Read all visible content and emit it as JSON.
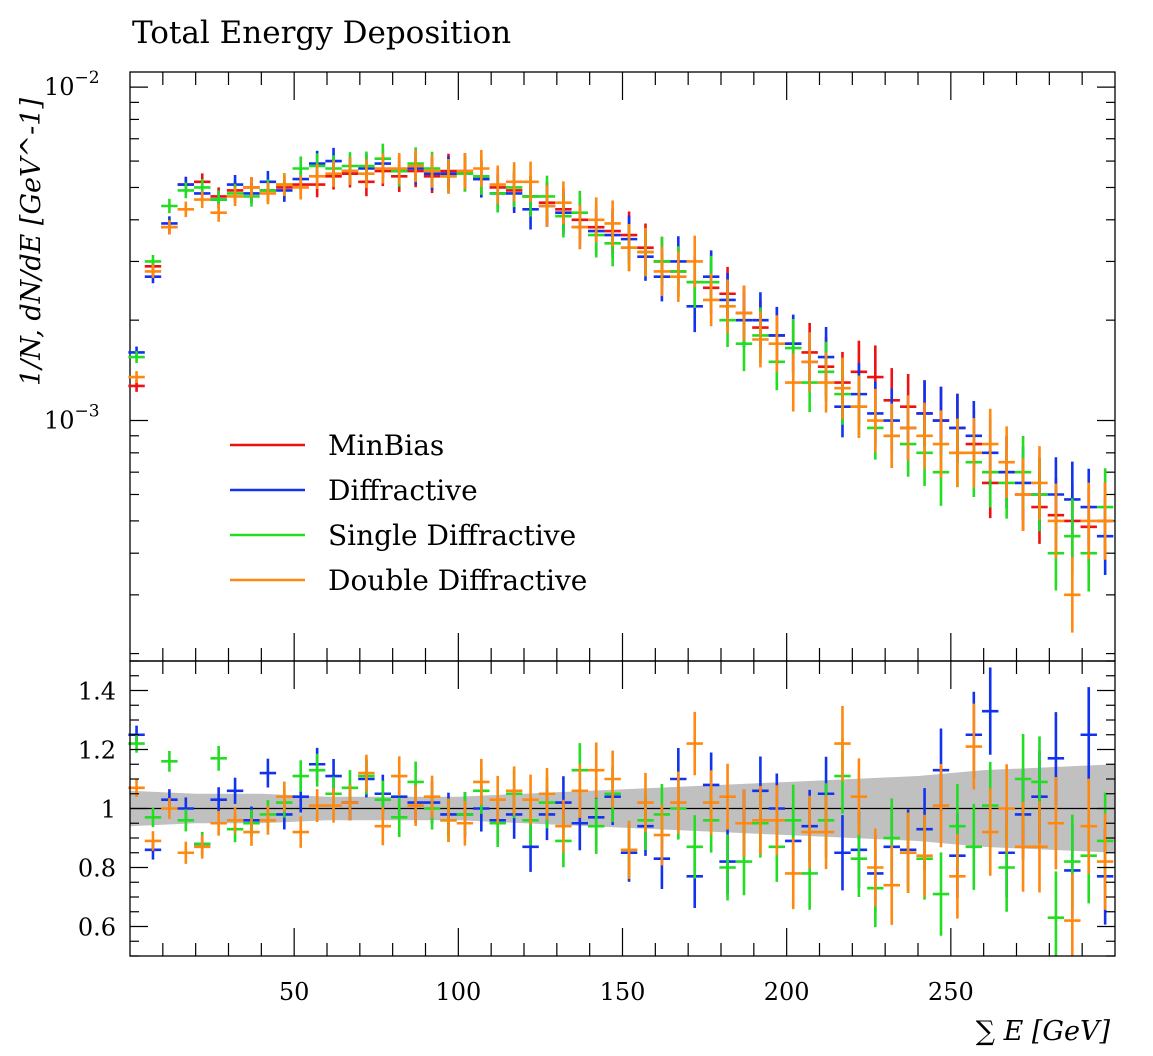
{
  "chart_data": [
    {
      "type": "scatter",
      "panel": "main",
      "title": "Total Energy Deposition",
      "ylabel": "1/N, dN/dE [GeV^-1]",
      "xlabel": "∑ E [GeV]",
      "yscale": "log",
      "xlim": [
        0,
        300
      ],
      "ylim": [
        0.00019,
        0.0111
      ],
      "ytick_labels": [
        {
          "base": "10",
          "exp": "−3",
          "value": 0.001
        },
        {
          "base": "10",
          "exp": "−2",
          "value": 0.01
        }
      ],
      "legend_position": "center-left",
      "series": [
        {
          "name": "MinBias",
          "color": "#ee1111",
          "x": [
            2,
            7,
            12,
            17,
            22,
            27,
            32,
            37,
            42,
            47,
            52,
            57,
            62,
            67,
            72,
            77,
            82,
            87,
            92,
            97,
            102,
            107,
            112,
            117,
            122,
            127,
            132,
            137,
            142,
            147,
            152,
            157,
            162,
            167,
            172,
            177,
            182,
            187,
            192,
            197,
            202,
            207,
            212,
            217,
            222,
            227,
            232,
            237,
            242,
            247,
            252,
            257,
            262,
            267,
            272,
            277,
            282,
            287,
            292,
            297
          ],
          "y": [
            0.00127,
            0.0029,
            0.0038,
            0.0051,
            0.0052,
            0.0047,
            0.0049,
            0.005,
            0.0049,
            0.005,
            0.0051,
            0.0051,
            0.0054,
            0.0055,
            0.0052,
            0.0056,
            0.0054,
            0.0056,
            0.0054,
            0.0056,
            0.0056,
            0.0053,
            0.005,
            0.0049,
            0.0047,
            0.0045,
            0.0043,
            0.004,
            0.0038,
            0.0037,
            0.0036,
            0.0033,
            0.003,
            0.0028,
            0.0026,
            0.0025,
            0.0024,
            0.0021,
            0.0019,
            0.0018,
            0.0017,
            0.0016,
            0.00145,
            0.0013,
            0.0014,
            0.00135,
            0.00115,
            0.0011,
            0.00105,
            0.001,
            0.00095,
            0.00085,
            0.00065,
            0.0007,
            0.0006,
            0.00055,
            0.00052,
            0.0005,
            0.00048,
            0.0005
          ]
        },
        {
          "name": "Diffractive",
          "color": "#1133ee",
          "x": [
            2,
            7,
            12,
            17,
            22,
            27,
            32,
            37,
            42,
            47,
            52,
            57,
            62,
            67,
            72,
            77,
            82,
            87,
            92,
            97,
            102,
            107,
            112,
            117,
            122,
            127,
            132,
            137,
            142,
            147,
            152,
            157,
            162,
            167,
            172,
            177,
            182,
            187,
            192,
            197,
            202,
            207,
            212,
            217,
            222,
            227,
            232,
            237,
            242,
            247,
            252,
            257,
            262,
            267,
            272,
            277,
            282,
            287,
            292,
            297
          ],
          "y": [
            0.0016,
            0.0027,
            0.0039,
            0.0051,
            0.0048,
            0.0046,
            0.0051,
            0.0048,
            0.0052,
            0.0049,
            0.0053,
            0.0059,
            0.006,
            0.0056,
            0.0057,
            0.0059,
            0.0056,
            0.0057,
            0.0055,
            0.0055,
            0.0055,
            0.0053,
            0.0048,
            0.0048,
            0.0043,
            0.0044,
            0.0042,
            0.0038,
            0.0037,
            0.0036,
            0.0035,
            0.0031,
            0.0027,
            0.003,
            0.0022,
            0.0027,
            0.0023,
            0.002,
            0.002,
            0.0018,
            0.0017,
            0.0015,
            0.00155,
            0.0011,
            0.0012,
            0.00105,
            0.001,
            0.00095,
            0.00105,
            0.001,
            0.00095,
            0.0009,
            0.0008,
            0.0007,
            0.00065,
            0.0006,
            0.0006,
            0.00058,
            0.00055,
            0.00045
          ]
        },
        {
          "name": "Single Diffractive",
          "color": "#22dd22",
          "x": [
            2,
            7,
            12,
            17,
            22,
            27,
            32,
            37,
            42,
            47,
            52,
            57,
            62,
            67,
            72,
            77,
            82,
            87,
            92,
            97,
            102,
            107,
            112,
            117,
            122,
            127,
            132,
            137,
            142,
            147,
            152,
            157,
            162,
            167,
            172,
            177,
            182,
            187,
            192,
            197,
            202,
            207,
            212,
            217,
            222,
            227,
            232,
            237,
            242,
            247,
            252,
            257,
            262,
            267,
            272,
            277,
            282,
            287,
            292,
            297
          ],
          "y": [
            0.00155,
            0.003,
            0.0044,
            0.0049,
            0.005,
            0.0046,
            0.0048,
            0.0047,
            0.0049,
            0.0051,
            0.0057,
            0.0058,
            0.0057,
            0.0058,
            0.0058,
            0.0061,
            0.0056,
            0.0059,
            0.0057,
            0.0054,
            0.0055,
            0.0054,
            0.0048,
            0.005,
            0.0047,
            0.0047,
            0.0041,
            0.0042,
            0.0036,
            0.0034,
            0.0033,
            0.0032,
            0.003,
            0.0028,
            0.0026,
            0.0026,
            0.002,
            0.0017,
            0.0018,
            0.0015,
            0.00165,
            0.0013,
            0.0014,
            0.0012,
            0.0011,
            0.00095,
            0.0009,
            0.00085,
            0.0008,
            0.0007,
            0.0008,
            0.00075,
            0.0007,
            0.00065,
            0.0007,
            0.0006,
            0.0004,
            0.00045,
            0.0004,
            0.00055
          ]
        },
        {
          "name": "Double Diffractive",
          "color": "#ff8811",
          "x": [
            2,
            7,
            12,
            17,
            22,
            27,
            32,
            37,
            42,
            47,
            52,
            57,
            62,
            67,
            72,
            77,
            82,
            87,
            92,
            97,
            102,
            107,
            112,
            117,
            122,
            127,
            132,
            137,
            142,
            147,
            152,
            157,
            162,
            167,
            172,
            177,
            182,
            187,
            192,
            197,
            202,
            207,
            212,
            217,
            222,
            227,
            232,
            237,
            242,
            247,
            252,
            257,
            262,
            267,
            272,
            277,
            282,
            287,
            292,
            297
          ],
          "y": [
            0.00135,
            0.0028,
            0.0038,
            0.0043,
            0.0046,
            0.0042,
            0.0047,
            0.005,
            0.0048,
            0.0051,
            0.005,
            0.0054,
            0.0055,
            0.0056,
            0.0055,
            0.0057,
            0.0057,
            0.0058,
            0.0056,
            0.0054,
            0.0056,
            0.0057,
            0.0051,
            0.0052,
            0.0052,
            0.0044,
            0.0045,
            0.0038,
            0.004,
            0.0039,
            0.0033,
            0.0032,
            0.0028,
            0.0027,
            0.003,
            0.0023,
            0.0022,
            0.0021,
            0.00175,
            0.0017,
            0.0013,
            0.0015,
            0.0013,
            0.00125,
            0.0011,
            0.001,
            0.0009,
            0.00095,
            0.0009,
            0.00085,
            0.0008,
            0.0008,
            0.00085,
            0.00075,
            0.0006,
            0.00065,
            0.0005,
            0.0003,
            0.0005,
            0.0005
          ]
        }
      ]
    },
    {
      "type": "scatter",
      "panel": "ratio",
      "xlabel": "∑ E [GeV]",
      "xlim": [
        0,
        300
      ],
      "ylim": [
        0.5,
        1.5
      ],
      "x_tick_labels": [
        "50",
        "100",
        "150",
        "200",
        "250"
      ],
      "x_tick_values": [
        50,
        100,
        150,
        200,
        250
      ],
      "y_tick_labels": [
        "0.6",
        "0.8",
        "1",
        "1.2",
        "1.4"
      ],
      "y_tick_values": [
        0.6,
        0.8,
        1.0,
        1.2,
        1.4
      ],
      "reference_line": 1.0,
      "band_color": "#c0c0c0",
      "band": {
        "x": [
          0,
          20,
          40,
          60,
          80,
          100,
          120,
          140,
          160,
          180,
          200,
          220,
          240,
          260,
          280,
          300
        ],
        "lo": [
          0.94,
          0.95,
          0.95,
          0.96,
          0.96,
          0.96,
          0.95,
          0.94,
          0.93,
          0.92,
          0.91,
          0.9,
          0.89,
          0.87,
          0.86,
          0.85
        ],
        "hi": [
          1.06,
          1.05,
          1.05,
          1.04,
          1.04,
          1.04,
          1.05,
          1.06,
          1.07,
          1.08,
          1.09,
          1.1,
          1.11,
          1.13,
          1.14,
          1.15
        ]
      },
      "series": [
        {
          "name": "Diffractive",
          "color": "#1133ee",
          "x": [
            2,
            7,
            12,
            17,
            22,
            27,
            32,
            37,
            42,
            47,
            52,
            57,
            62,
            67,
            72,
            77,
            82,
            87,
            92,
            97,
            102,
            107,
            112,
            117,
            122,
            127,
            132,
            137,
            142,
            147,
            152,
            157,
            162,
            167,
            172,
            177,
            182,
            187,
            192,
            197,
            202,
            207,
            212,
            217,
            222,
            227,
            232,
            237,
            242,
            247,
            252,
            257,
            262,
            267,
            272,
            277,
            282,
            287,
            292,
            297
          ],
          "y": [
            1.25,
            0.86,
            1.03,
            1.0,
            0.88,
            1.03,
            1.06,
            0.96,
            1.12,
            0.98,
            1.04,
            1.15,
            1.11,
            1.02,
            1.1,
            1.05,
            1.04,
            1.02,
            1.02,
            0.98,
            0.98,
            1.0,
            0.96,
            0.98,
            0.87,
            0.98,
            1.02,
            0.95,
            0.97,
            1.04,
            0.85,
            0.94,
            0.83,
            1.1,
            0.77,
            1.08,
            0.82,
            0.95,
            1.06,
            1.0,
            0.89,
            0.94,
            1.05,
            0.85,
            0.86,
            0.78,
            0.87,
            0.86,
            0.93,
            1.13,
            0.84,
            1.25,
            1.33,
            0.85,
            0.98,
            1.04,
            1.17,
            0.79,
            1.25,
            0.77
          ]
        },
        {
          "name": "Single Diffractive",
          "color": "#22dd22",
          "x": [
            2,
            7,
            12,
            17,
            22,
            27,
            32,
            37,
            42,
            47,
            52,
            57,
            62,
            67,
            72,
            77,
            82,
            87,
            92,
            97,
            102,
            107,
            112,
            117,
            122,
            127,
            132,
            137,
            142,
            147,
            152,
            157,
            162,
            167,
            172,
            177,
            182,
            187,
            192,
            197,
            202,
            207,
            212,
            217,
            222,
            227,
            232,
            237,
            242,
            247,
            252,
            257,
            262,
            267,
            272,
            277,
            282,
            287,
            292,
            297
          ],
          "y": [
            1.22,
            0.97,
            1.16,
            0.96,
            0.88,
            1.17,
            0.93,
            0.95,
            0.98,
            1.02,
            1.11,
            1.13,
            1.05,
            1.07,
            1.11,
            1.03,
            0.97,
            1.09,
            1.0,
            0.96,
            0.98,
            1.06,
            0.95,
            1.05,
            0.96,
            1.02,
            0.89,
            1.13,
            0.94,
            1.05,
            0.86,
            0.96,
            0.98,
            1.0,
            0.87,
            0.96,
            0.8,
            0.82,
            0.95,
            0.87,
            0.96,
            0.78,
            0.96,
            1.11,
            0.83,
            0.73,
            0.9,
            0.85,
            0.83,
            0.71,
            0.94,
            0.87,
            1.01,
            0.8,
            1.1,
            1.09,
            0.63,
            0.82,
            0.84,
            0.89
          ]
        },
        {
          "name": "Double Diffractive",
          "color": "#ff8811",
          "x": [
            2,
            7,
            12,
            17,
            22,
            27,
            32,
            37,
            42,
            47,
            52,
            57,
            62,
            67,
            72,
            77,
            82,
            87,
            92,
            97,
            102,
            107,
            112,
            117,
            122,
            127,
            132,
            137,
            142,
            147,
            152,
            157,
            162,
            167,
            172,
            177,
            182,
            187,
            192,
            197,
            202,
            207,
            212,
            217,
            222,
            227,
            232,
            237,
            242,
            247,
            252,
            257,
            262,
            267,
            272,
            277,
            282,
            287,
            292,
            297
          ],
          "y": [
            1.07,
            0.89,
            1.0,
            0.85,
            0.87,
            0.95,
            0.96,
            0.92,
            0.96,
            1.04,
            0.92,
            1.01,
            1.01,
            1.02,
            1.12,
            0.94,
            1.11,
            1.01,
            1.04,
            0.96,
            0.95,
            1.09,
            1.03,
            1.06,
            1.03,
            1.05,
            0.94,
            1.06,
            1.13,
            1.1,
            0.86,
            1.02,
            0.91,
            1.02,
            1.22,
            1.02,
            1.04,
            0.95,
            0.96,
            0.96,
            0.78,
            0.92,
            0.92,
            1.22,
            1.04,
            0.8,
            0.74,
            0.85,
            0.84,
            1.01,
            0.77,
            1.21,
            0.92,
            1.0,
            0.87,
            0.87,
            0.95,
            0.62,
            0.94,
            0.82
          ]
        }
      ]
    }
  ]
}
